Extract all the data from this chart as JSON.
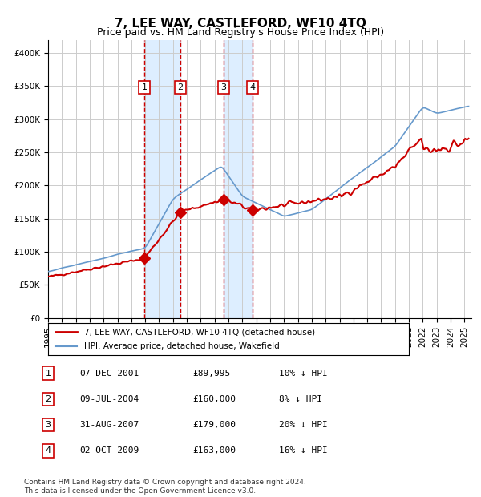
{
  "title": "7, LEE WAY, CASTLEFORD, WF10 4TQ",
  "subtitle": "Price paid vs. HM Land Registry's House Price Index (HPI)",
  "xlabel": "",
  "ylabel": "",
  "ylim": [
    0,
    420000
  ],
  "yticks": [
    0,
    50000,
    100000,
    150000,
    200000,
    250000,
    300000,
    350000,
    400000
  ],
  "ytick_labels": [
    "£0",
    "£50K",
    "£100K",
    "£150K",
    "£200K",
    "£250K",
    "£300K",
    "£350K",
    "£400K"
  ],
  "xlim_start": 1995.0,
  "xlim_end": 2025.5,
  "xtick_years": [
    1995,
    1996,
    1997,
    1998,
    1999,
    2000,
    2001,
    2002,
    2003,
    2004,
    2005,
    2006,
    2007,
    2008,
    2009,
    2010,
    2011,
    2012,
    2013,
    2014,
    2015,
    2016,
    2017,
    2018,
    2019,
    2020,
    2021,
    2022,
    2023,
    2024,
    2025
  ],
  "sale_dates": [
    2001.93,
    2004.52,
    2007.66,
    2009.75
  ],
  "sale_prices": [
    89995,
    160000,
    179000,
    163000
  ],
  "sale_labels": [
    "1",
    "2",
    "3",
    "4"
  ],
  "sale_color": "#cc0000",
  "hpi_color": "#6699cc",
  "background_color": "#ffffff",
  "grid_color": "#cccccc",
  "shade_color": "#ddeeff",
  "legend_entries": [
    "7, LEE WAY, CASTLEFORD, WF10 4TQ (detached house)",
    "HPI: Average price, detached house, Wakefield"
  ],
  "table_data": [
    [
      "1",
      "07-DEC-2001",
      "£89,995",
      "10% ↓ HPI"
    ],
    [
      "2",
      "09-JUL-2004",
      "£160,000",
      "8% ↓ HPI"
    ],
    [
      "3",
      "31-AUG-2007",
      "£179,000",
      "20% ↓ HPI"
    ],
    [
      "4",
      "02-OCT-2009",
      "£163,000",
      "16% ↓ HPI"
    ]
  ],
  "footnote": "Contains HM Land Registry data © Crown copyright and database right 2024.\nThis data is licensed under the Open Government Licence v3.0."
}
